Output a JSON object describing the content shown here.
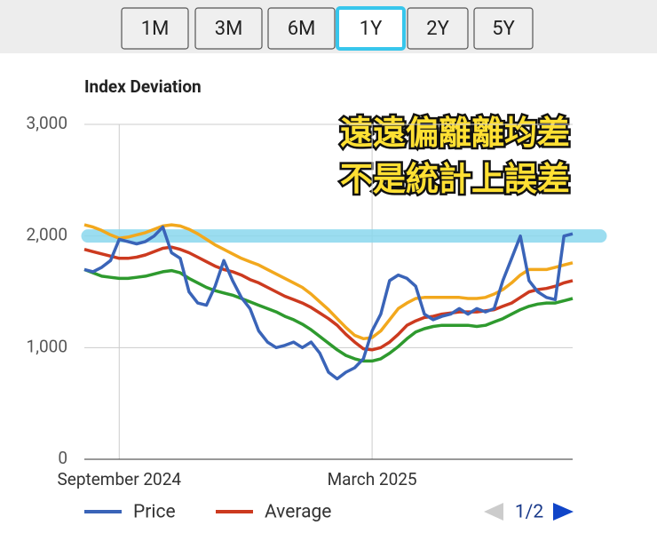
{
  "range_selector": {
    "options": [
      "1M",
      "3M",
      "6M",
      "1Y",
      "2Y",
      "5Y"
    ],
    "selected": 3
  },
  "chart_data": {
    "type": "line",
    "title": "Index Deviation",
    "annotations": [
      "遠遠偏離離均差",
      "不是統計上誤差"
    ],
    "highlight_y": 2000,
    "highlight_color": "#8ad8ee",
    "categories": [
      null,
      null,
      null,
      null,
      "September 2024",
      null,
      null,
      null,
      null,
      null,
      null,
      null,
      null,
      null,
      null,
      null,
      null,
      null,
      null,
      null,
      null,
      null,
      null,
      null,
      null,
      null,
      null,
      null,
      null,
      null,
      null,
      null,
      null,
      "March 2025",
      null,
      null,
      null,
      null,
      null,
      null,
      null,
      null,
      null,
      null,
      null,
      null,
      null,
      null,
      null,
      null,
      null,
      null,
      null,
      null,
      null,
      null,
      null
    ],
    "series": [
      {
        "name": "Price",
        "color": "#3a64b8",
        "values": [
          1700,
          1680,
          1720,
          1780,
          1970,
          1950,
          1930,
          1950,
          2000,
          2080,
          1850,
          1800,
          1500,
          1400,
          1380,
          1550,
          1780,
          1600,
          1450,
          1350,
          1150,
          1050,
          1000,
          1020,
          1050,
          1000,
          1050,
          950,
          780,
          720,
          780,
          820,
          900,
          1150,
          1300,
          1600,
          1650,
          1620,
          1550,
          1300,
          1250,
          1280,
          1300,
          1350,
          1300,
          1350,
          1320,
          1350,
          1600,
          1800,
          2000,
          1600,
          1500,
          1450,
          1430,
          2000,
          2020
        ]
      },
      {
        "name": "Average",
        "color": "#cc3a1f",
        "values": [
          1880,
          1860,
          1840,
          1820,
          1800,
          1800,
          1810,
          1830,
          1860,
          1890,
          1900,
          1880,
          1850,
          1810,
          1770,
          1730,
          1700,
          1680,
          1650,
          1610,
          1580,
          1540,
          1500,
          1460,
          1430,
          1400,
          1360,
          1310,
          1260,
          1200,
          1120,
          1050,
          990,
          980,
          1000,
          1050,
          1120,
          1200,
          1240,
          1270,
          1280,
          1300,
          1310,
          1320,
          1320,
          1320,
          1330,
          1340,
          1370,
          1400,
          1450,
          1500,
          1520,
          1530,
          1550,
          1580,
          1600
        ]
      },
      {
        "color": "#f2a81d",
        "values": [
          2100,
          2080,
          2050,
          2010,
          1980,
          1990,
          2010,
          2030,
          2060,
          2090,
          2100,
          2090,
          2060,
          2020,
          1970,
          1920,
          1880,
          1840,
          1800,
          1770,
          1740,
          1700,
          1660,
          1620,
          1580,
          1540,
          1480,
          1410,
          1340,
          1260,
          1180,
          1110,
          1080,
          1090,
          1150,
          1250,
          1350,
          1400,
          1440,
          1450,
          1450,
          1450,
          1450,
          1450,
          1440,
          1440,
          1450,
          1480,
          1520,
          1580,
          1650,
          1700,
          1700,
          1700,
          1720,
          1740,
          1760
        ]
      },
      {
        "color": "#2e9a2e",
        "values": [
          1700,
          1670,
          1640,
          1630,
          1620,
          1620,
          1630,
          1640,
          1660,
          1680,
          1690,
          1670,
          1620,
          1580,
          1540,
          1510,
          1490,
          1470,
          1440,
          1410,
          1380,
          1350,
          1320,
          1280,
          1250,
          1210,
          1160,
          1100,
          1040,
          980,
          930,
          900,
          880,
          880,
          900,
          950,
          1010,
          1080,
          1140,
          1170,
          1190,
          1200,
          1200,
          1200,
          1200,
          1190,
          1200,
          1230,
          1260,
          1300,
          1340,
          1370,
          1390,
          1400,
          1400,
          1420,
          1440
        ]
      }
    ],
    "ylim": [
      0,
      3000
    ],
    "yticks": [
      0,
      {
        "value": 1000,
        "label": "1,000"
      },
      {
        "value": 2000,
        "label": "2,000"
      },
      {
        "value": 3000,
        "label": "3,000"
      }
    ],
    "grid": true,
    "legend": "bottom",
    "legend_page": "1/2"
  }
}
